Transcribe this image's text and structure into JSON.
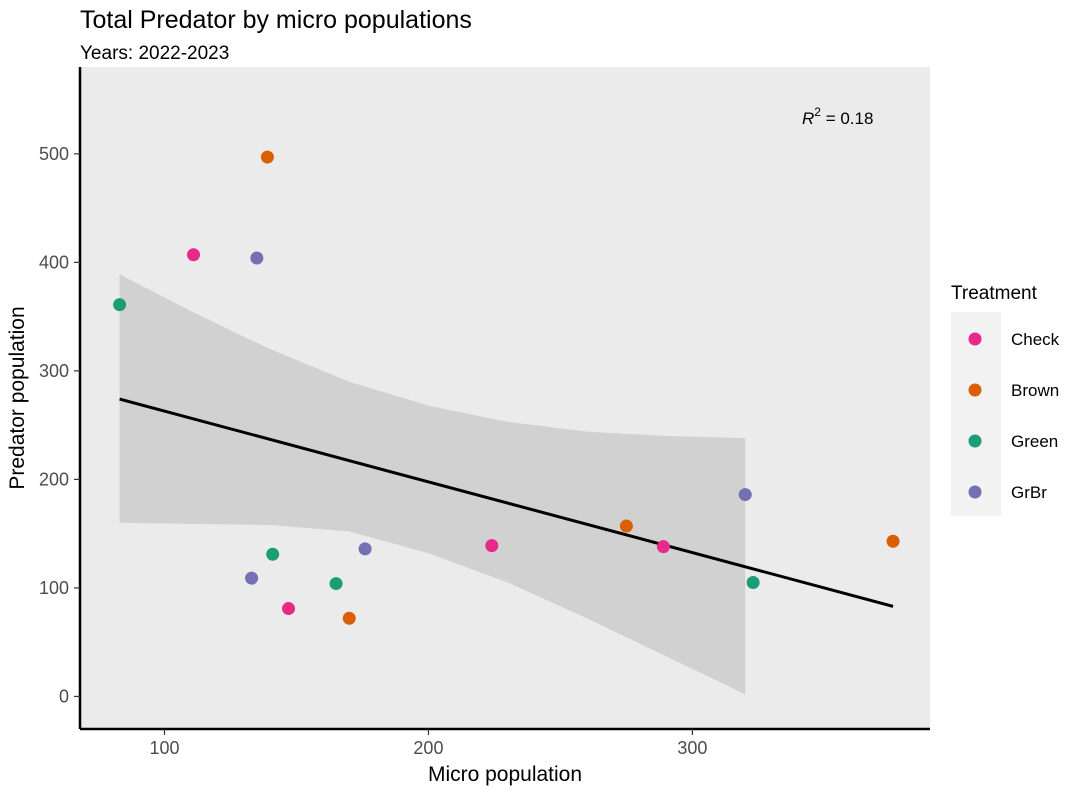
{
  "chart_data": {
    "type": "scatter",
    "title": "Total Predator by micro populations",
    "subtitle": "Years: 2022-2023",
    "xlabel": "Micro population",
    "ylabel": "Predator population",
    "xlim": [
      68,
      390
    ],
    "ylim": [
      -30,
      580
    ],
    "x_ticks": [
      100,
      200,
      300
    ],
    "y_ticks": [
      0,
      100,
      200,
      300,
      400,
      500
    ],
    "grid": false,
    "legend": {
      "title": "Treatment",
      "placement": "right",
      "entries": [
        "Check",
        "Brown",
        "Green",
        "GrBr"
      ]
    },
    "colors": {
      "Check": "#E7298A",
      "Brown": "#D95F02",
      "Green": "#1B9E77",
      "GrBr": "#7570B3",
      "panel_bg": "#EBEBEB",
      "ribbon": "#CCCCCC",
      "fit_line": "#000000"
    },
    "annotation": {
      "text_base": "R",
      "text_sup": "2",
      "text_rest": " = 0.18"
    },
    "series": [
      {
        "name": "Check",
        "points": [
          [
            111,
            407
          ],
          [
            147,
            81
          ],
          [
            224,
            139
          ],
          [
            289,
            138
          ]
        ]
      },
      {
        "name": "Brown",
        "points": [
          [
            139,
            497
          ],
          [
            170,
            72
          ],
          [
            275,
            157
          ],
          [
            376,
            143
          ]
        ]
      },
      {
        "name": "Green",
        "points": [
          [
            83,
            361
          ],
          [
            141,
            131
          ],
          [
            165,
            104
          ],
          [
            323,
            105
          ]
        ]
      },
      {
        "name": "GrBr",
        "points": [
          [
            133,
            109
          ],
          [
            135,
            404
          ],
          [
            176,
            136
          ],
          [
            320,
            186
          ]
        ]
      }
    ],
    "fit": {
      "line": [
        [
          83,
          274
        ],
        [
          376,
          83
        ]
      ],
      "ribbon_upper": [
        [
          83,
          389
        ],
        [
          110,
          355
        ],
        [
          140,
          320
        ],
        [
          170,
          290
        ],
        [
          200,
          268
        ],
        [
          230,
          253
        ],
        [
          260,
          244
        ],
        [
          290,
          240
        ],
        [
          320,
          238
        ]
      ],
      "ribbon_lower": [
        [
          83,
          160
        ],
        [
          110,
          159
        ],
        [
          140,
          158
        ],
        [
          170,
          152
        ],
        [
          200,
          132
        ],
        [
          230,
          105
        ],
        [
          260,
          72
        ],
        [
          290,
          37
        ],
        [
          320,
          2
        ]
      ]
    }
  }
}
